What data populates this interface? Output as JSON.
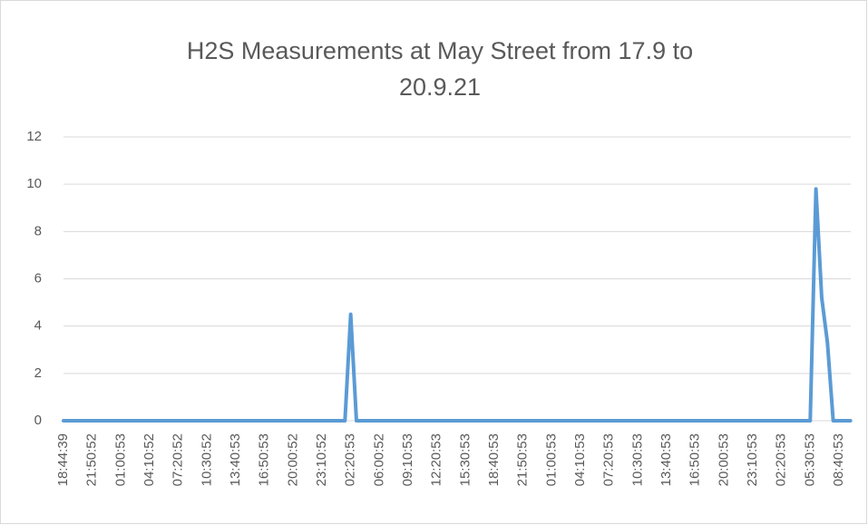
{
  "chart_data": {
    "type": "line",
    "title": "H2S Measurements at May Street from 17.9 to 20.9.21",
    "categories": [
      "18:44:39",
      null,
      null,
      null,
      null,
      "21:50:52",
      null,
      null,
      null,
      null,
      "01:00:53",
      null,
      null,
      null,
      null,
      "04:10:52",
      null,
      null,
      null,
      null,
      "07:20:52",
      null,
      null,
      null,
      null,
      "10:30:52",
      null,
      null,
      null,
      null,
      "13:40:53",
      null,
      null,
      null,
      null,
      "16:50:53",
      null,
      null,
      null,
      null,
      "20:00:52",
      null,
      null,
      null,
      null,
      "23:10:52",
      null,
      null,
      null,
      null,
      "02:20:53",
      null,
      null,
      null,
      null,
      "06:00:52",
      null,
      null,
      null,
      null,
      "09:10:53",
      null,
      null,
      null,
      null,
      "12:20:53",
      null,
      null,
      null,
      null,
      "15:30:53",
      null,
      null,
      null,
      null,
      "18:40:53",
      null,
      null,
      null,
      null,
      "21:50:53",
      null,
      null,
      null,
      null,
      "01:00:53",
      null,
      null,
      null,
      null,
      "04:10:53",
      null,
      null,
      null,
      null,
      "07:20:53",
      null,
      null,
      null,
      null,
      "10:30:53",
      null,
      null,
      null,
      null,
      "13:40:53",
      null,
      null,
      null,
      null,
      "16:50:53",
      null,
      null,
      null,
      null,
      "20:00:53",
      null,
      null,
      null,
      null,
      "23:10:53",
      null,
      null,
      null,
      null,
      "02:20:53",
      null,
      null,
      null,
      null,
      "05:30:53",
      null,
      null,
      null,
      null,
      "08:40:53",
      null,
      null
    ],
    "values": [
      0,
      0,
      0,
      0,
      0,
      0,
      0,
      0,
      0,
      0,
      0,
      0,
      0,
      0,
      0,
      0,
      0,
      0,
      0,
      0,
      0,
      0,
      0,
      0,
      0,
      0,
      0,
      0,
      0,
      0,
      0,
      0,
      0,
      0,
      0,
      0,
      0,
      0,
      0,
      0,
      0,
      0,
      0,
      0,
      0,
      0,
      0,
      0,
      0,
      0,
      4.5,
      0,
      0,
      0,
      0,
      0,
      0,
      0,
      0,
      0,
      0,
      0,
      0,
      0,
      0,
      0,
      0,
      0,
      0,
      0,
      0,
      0,
      0,
      0,
      0,
      0,
      0,
      0,
      0,
      0,
      0,
      0,
      0,
      0,
      0,
      0,
      0,
      0,
      0,
      0,
      0,
      0,
      0,
      0,
      0,
      0,
      0,
      0,
      0,
      0,
      0,
      0,
      0,
      0,
      0,
      0,
      0,
      0,
      0,
      0,
      0,
      0,
      0,
      0,
      0,
      0,
      0,
      0,
      0,
      0,
      0,
      0,
      0,
      0,
      0,
      0,
      0,
      0,
      0,
      0,
      0,
      9.8,
      5.2,
      3.3,
      0,
      0,
      0,
      0
    ],
    "color": "#5b9bd5",
    "ylim": [
      0,
      12
    ],
    "yticks": [
      0,
      2,
      4,
      6,
      8,
      10,
      12
    ],
    "grid": true
  }
}
